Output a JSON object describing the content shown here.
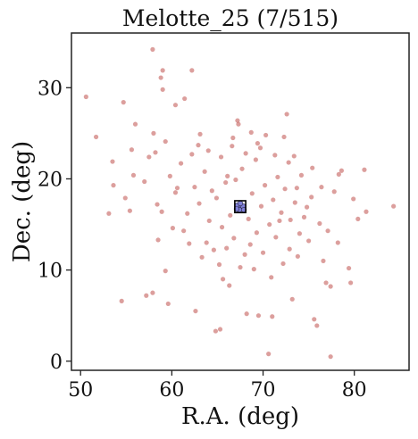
{
  "chart_data": {
    "type": "scatter",
    "title": "Melotte_25 (7/515)",
    "xlabel": "R.A. (deg)",
    "ylabel": "Dec. (deg)",
    "xlim": [
      49,
      86
    ],
    "ylim": [
      -1,
      36
    ],
    "xticks": [
      50,
      60,
      70,
      80
    ],
    "yticks": [
      0,
      10,
      20,
      30
    ],
    "grid": false,
    "legend": "none",
    "colors": {
      "field": "#c0504d",
      "member_face": "#7f7fd6",
      "member_edge": "#2a2a4a",
      "box": "#000000"
    },
    "highlight_box": {
      "x_range": [
        66.9,
        68.1
      ],
      "y_range": [
        16.3,
        17.6
      ]
    },
    "members": [
      {
        "x": 67.2,
        "y": 17.1
      },
      {
        "x": 67.6,
        "y": 16.8
      },
      {
        "x": 67.4,
        "y": 16.6
      },
      {
        "x": 67.8,
        "y": 17.0
      },
      {
        "x": 67.1,
        "y": 16.7
      },
      {
        "x": 67.5,
        "y": 17.3
      },
      {
        "x": 67.9,
        "y": 16.6
      }
    ],
    "series": [
      {
        "points": [
          [
            50.6,
            29.0
          ],
          [
            51.7,
            24.6
          ],
          [
            53.1,
            16.2
          ],
          [
            53.5,
            21.9
          ],
          [
            53.6,
            19.3
          ],
          [
            54.5,
            6.6
          ],
          [
            54.7,
            28.4
          ],
          [
            54.9,
            17.9
          ],
          [
            55.4,
            16.5
          ],
          [
            55.6,
            23.2
          ],
          [
            55.8,
            20.4
          ],
          [
            56.0,
            26.0
          ],
          [
            57.2,
            7.2
          ],
          [
            57.5,
            22.4
          ],
          [
            57.9,
            7.5
          ],
          [
            57.9,
            34.2
          ],
          [
            58.0,
            25.0
          ],
          [
            58.2,
            22.9
          ],
          [
            58.4,
            17.2
          ],
          [
            58.5,
            13.3
          ],
          [
            58.8,
            31.1
          ],
          [
            59.0,
            31.9
          ],
          [
            59.0,
            29.8
          ],
          [
            59.3,
            9.9
          ],
          [
            59.3,
            24.1
          ],
          [
            59.6,
            6.3
          ],
          [
            60.4,
            28.1
          ],
          [
            60.6,
            19.0
          ],
          [
            61.0,
            21.7
          ],
          [
            61.4,
            28.8
          ],
          [
            61.3,
            14.3
          ],
          [
            62.2,
            31.9
          ],
          [
            62.6,
            5.5
          ],
          [
            62.9,
            23.7
          ],
          [
            63.1,
            24.9
          ],
          [
            63.8,
            13.0
          ],
          [
            64.4,
            18.7
          ],
          [
            64.8,
            3.3
          ],
          [
            65.3,
            3.5
          ],
          [
            65.6,
            9.0
          ],
          [
            66.1,
            20.3
          ],
          [
            66.3,
            8.3
          ],
          [
            66.7,
            24.5
          ],
          [
            67.2,
            26.4
          ],
          [
            67.3,
            26.0
          ],
          [
            67.7,
            21.1
          ],
          [
            68.0,
            11.7
          ],
          [
            68.2,
            5.2
          ],
          [
            68.7,
            25.1
          ],
          [
            69.2,
            22.1
          ],
          [
            69.5,
            5.0
          ],
          [
            69.7,
            23.4
          ],
          [
            70.3,
            24.8
          ],
          [
            70.6,
            0.8
          ],
          [
            71.0,
            4.9
          ],
          [
            71.4,
            13.6
          ],
          [
            71.8,
            15.4
          ],
          [
            72.3,
            24.6
          ],
          [
            72.6,
            27.1
          ],
          [
            72.9,
            12.3
          ],
          [
            73.2,
            6.8
          ],
          [
            73.4,
            22.5
          ],
          [
            73.7,
            19.0
          ],
          [
            74.0,
            14.0
          ],
          [
            74.5,
            15.8
          ],
          [
            75.4,
            21.2
          ],
          [
            75.6,
            4.6
          ],
          [
            75.9,
            3.9
          ],
          [
            76.2,
            15.1
          ],
          [
            76.6,
            11.0
          ],
          [
            76.9,
            8.6
          ],
          [
            77.4,
            0.5
          ],
          [
            77.4,
            8.2
          ],
          [
            77.8,
            18.6
          ],
          [
            78.2,
            13.0
          ],
          [
            78.3,
            20.5
          ],
          [
            78.6,
            20.9
          ],
          [
            79.4,
            10.2
          ],
          [
            79.6,
            8.6
          ],
          [
            79.9,
            17.8
          ],
          [
            80.4,
            15.6
          ],
          [
            81.1,
            21.0
          ],
          [
            81.3,
            16.4
          ],
          [
            84.3,
            17.0
          ],
          [
            60.4,
            18.5
          ],
          [
            61.7,
            16.2
          ],
          [
            62.5,
            19.1
          ],
          [
            63.0,
            17.3
          ],
          [
            63.6,
            20.8
          ],
          [
            64.1,
            15.4
          ],
          [
            64.9,
            17.9
          ],
          [
            65.5,
            14.7
          ],
          [
            65.9,
            19.6
          ],
          [
            66.4,
            16.0
          ],
          [
            66.8,
            13.5
          ],
          [
            67.0,
            19.9
          ],
          [
            68.4,
            15.6
          ],
          [
            68.8,
            18.4
          ],
          [
            69.3,
            14.1
          ],
          [
            69.8,
            17.0
          ],
          [
            70.2,
            19.3
          ],
          [
            70.7,
            15.0
          ],
          [
            71.1,
            17.7
          ],
          [
            71.6,
            20.2
          ],
          [
            72.0,
            16.3
          ],
          [
            72.4,
            18.9
          ],
          [
            73.0,
            15.5
          ],
          [
            73.5,
            17.4
          ],
          [
            74.2,
            20.4
          ],
          [
            74.8,
            16.9
          ],
          [
            61.9,
            12.9
          ],
          [
            63.3,
            11.4
          ],
          [
            64.6,
            12.2
          ],
          [
            65.2,
            10.6
          ],
          [
            66.0,
            12.4
          ],
          [
            67.5,
            10.3
          ],
          [
            68.6,
            12.8
          ],
          [
            69.0,
            10.1
          ],
          [
            70.0,
            11.9
          ],
          [
            70.9,
            9.2
          ],
          [
            72.2,
            10.7
          ],
          [
            73.8,
            11.5
          ],
          [
            62.2,
            22.7
          ],
          [
            64.0,
            23.1
          ],
          [
            65.4,
            22.4
          ],
          [
            66.6,
            23.6
          ],
          [
            68.1,
            22.8
          ],
          [
            69.4,
            23.9
          ],
          [
            71.3,
            22.6
          ],
          [
            72.8,
            21.8
          ],
          [
            57.0,
            19.7
          ],
          [
            58.9,
            16.4
          ],
          [
            59.8,
            20.3
          ],
          [
            60.1,
            14.6
          ],
          [
            75.0,
            13.2
          ],
          [
            75.3,
            18.0
          ],
          [
            76.4,
            19.1
          ],
          [
            77.1,
            14.3
          ]
        ]
      }
    ]
  }
}
